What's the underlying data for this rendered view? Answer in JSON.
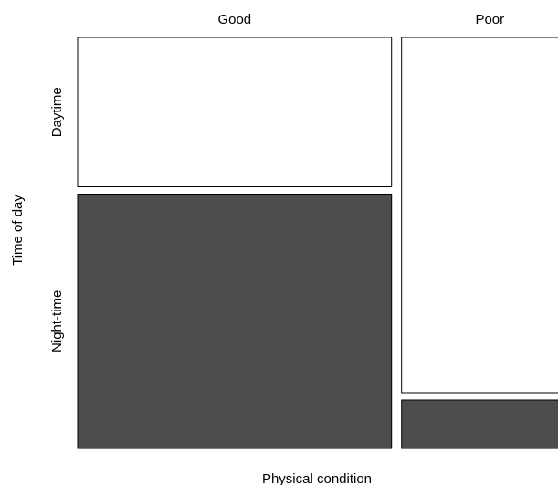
{
  "chart_data": {
    "type": "mosaic",
    "title": "",
    "xlabel": "Physical condition",
    "ylabel": "Time of day",
    "x_categories": [
      "Good",
      "Poor"
    ],
    "y_categories": [
      "Daytime",
      "Night-time"
    ],
    "column_shares": [
      0.64,
      0.36
    ],
    "cells": [
      {
        "x": "Good",
        "y": "Daytime",
        "proportion_within_column": 0.37
      },
      {
        "x": "Good",
        "y": "Night-time",
        "proportion_within_column": 0.63
      },
      {
        "x": "Poor",
        "y": "Daytime",
        "proportion_within_column": 0.88
      },
      {
        "x": "Poor",
        "y": "Night-time",
        "proportion_within_column": 0.12
      }
    ],
    "colors": {
      "Daytime": "#ffffff",
      "Night-time": "#4d4d4d"
    },
    "legend": "none",
    "grid": false
  }
}
